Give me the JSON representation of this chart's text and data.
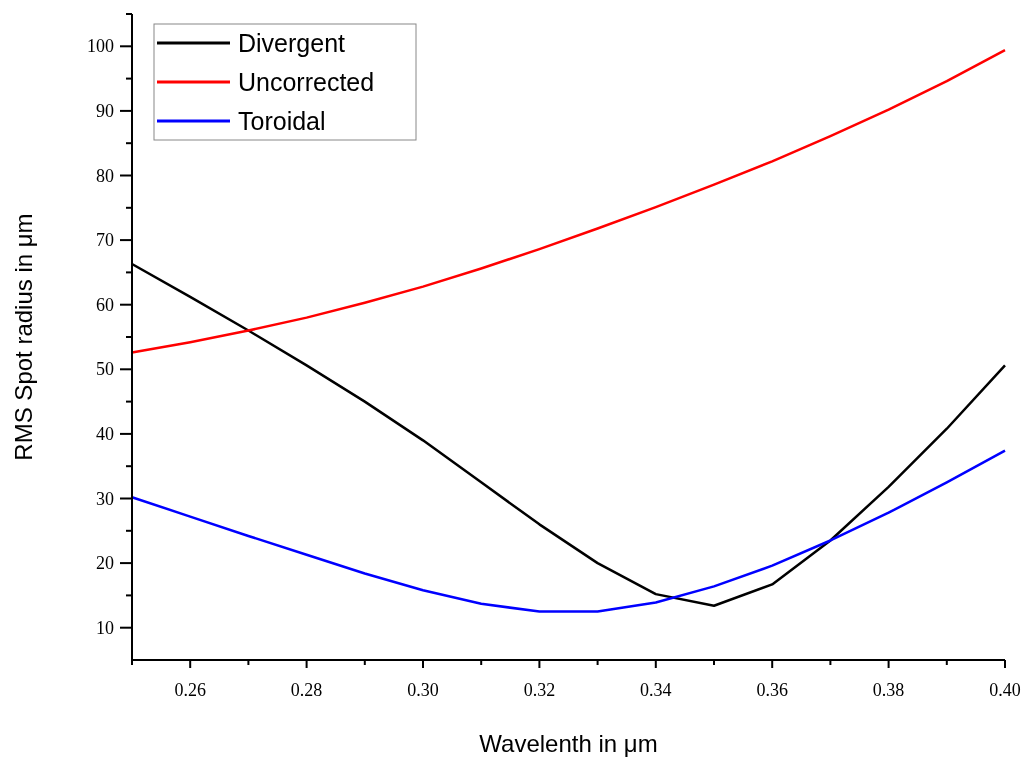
{
  "chart_data": {
    "type": "line",
    "xlabel": "Wavelenth in μm",
    "ylabel": "RMS Spot radius in μm",
    "x": [
      0.25,
      0.26,
      0.27,
      0.28,
      0.29,
      0.3,
      0.31,
      0.32,
      0.33,
      0.34,
      0.35,
      0.36,
      0.37,
      0.38,
      0.39,
      0.4
    ],
    "series": [
      {
        "name": "Divergent",
        "color": "#000000",
        "values": [
          66.3,
          61.2,
          56,
          50.6,
          45,
          39,
          32.5,
          26,
          20,
          15.2,
          13.4,
          16.7,
          23.5,
          31.8,
          40.8,
          50.6
        ]
      },
      {
        "name": "Uncorrected",
        "color": "#ff0000",
        "values": [
          52.6,
          54.2,
          56,
          58,
          60.3,
          62.8,
          65.6,
          68.6,
          71.8,
          75.1,
          78.6,
          82.2,
          86.1,
          90.2,
          94.6,
          99.4
        ]
      },
      {
        "name": "Toroidal",
        "color": "#0000ff",
        "values": [
          30.2,
          27.2,
          24.2,
          21.3,
          18.4,
          15.8,
          13.7,
          12.5,
          12.5,
          13.9,
          16.4,
          19.6,
          23.5,
          27.8,
          32.5,
          37.4
        ]
      }
    ],
    "xlim": [
      0.25,
      0.4
    ],
    "xticks": [
      {
        "value": 0.25,
        "label": null
      },
      0.26,
      {
        "value": 0.27,
        "label": null
      },
      0.28,
      {
        "value": 0.29,
        "label": null
      },
      {
        "value": 0.3,
        "label": "0.30"
      },
      {
        "value": 0.31,
        "label": null
      },
      0.32,
      {
        "value": 0.33,
        "label": null
      },
      0.34,
      {
        "value": 0.35,
        "label": null
      },
      0.36,
      {
        "value": 0.37,
        "label": null
      },
      0.38,
      {
        "value": 0.39,
        "label": null
      },
      {
        "value": 0.4,
        "label": "0.40"
      }
    ],
    "ylim": [
      5,
      105
    ],
    "yticks": [
      10,
      {
        "value": 15,
        "label": null
      },
      20,
      {
        "value": 25,
        "label": null
      },
      30,
      {
        "value": 35,
        "label": null
      },
      40,
      {
        "value": 45,
        "label": null
      },
      50,
      {
        "value": 55,
        "label": null
      },
      60,
      {
        "value": 65,
        "label": null
      },
      70,
      {
        "value": 75,
        "label": null
      },
      80,
      {
        "value": 85,
        "label": null
      },
      90,
      {
        "value": 95,
        "label": null
      },
      100,
      {
        "value": 105,
        "label": null
      }
    ],
    "legend": "top left",
    "grid": false,
    "marker": "none",
    "line_style": "solid"
  }
}
